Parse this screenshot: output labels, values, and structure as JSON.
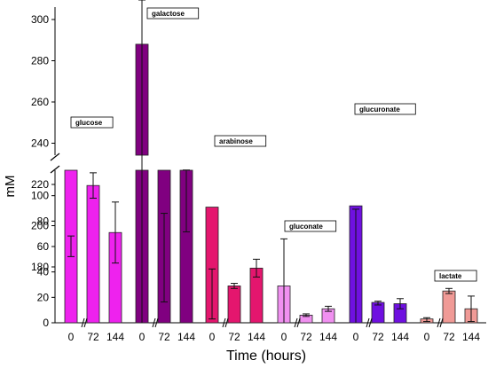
{
  "chart_data": {
    "type": "bar",
    "title": "",
    "xlabel": "Time (hours)",
    "ylabel": "mM",
    "y_axis_break": {
      "lower": [
        0,
        120
      ],
      "upper": [
        170,
        310
      ]
    },
    "yticks_lower": [
      0,
      20,
      40,
      60,
      80,
      100
    ],
    "yticks_upper": [
      180,
      200,
      220,
      240,
      260,
      280,
      300
    ],
    "series": [
      {
        "name": "glucose",
        "color": "#ee22ee",
        "x": [
          "0",
          "72",
          "144"
        ],
        "values": [
          190,
          108,
          71
        ],
        "err_hi": [
          195,
          118,
          95
        ],
        "err_lo": [
          185,
          98,
          47
        ]
      },
      {
        "name": "galactose",
        "color": "#800080",
        "x": [
          "0",
          "72",
          "144"
        ],
        "values": [
          288,
          184,
          212
        ],
        "err_hi": [
          311,
          206,
          227
        ],
        "err_lo": [
          0,
          163,
          197
        ]
      },
      {
        "name": "arabinose",
        "color": "#e4166e",
        "x": [
          "0",
          "72",
          "144"
        ],
        "values": [
          91,
          29,
          43
        ],
        "err_hi": [
          179,
          31,
          50
        ],
        "err_lo": [
          3,
          27,
          36
        ]
      },
      {
        "name": "gluconate",
        "color": "#f090f0",
        "x": [
          "0",
          "72",
          "144"
        ],
        "values": [
          29,
          6,
          11
        ],
        "err_hi": [
          66,
          7,
          13
        ],
        "err_lo": [
          0,
          5,
          9
        ]
      },
      {
        "name": "glucuronate",
        "color": "#6f10e0",
        "x": [
          "0",
          "72",
          "144"
        ],
        "values": [
          92,
          16,
          15
        ],
        "err_hi": [
          208,
          17,
          19
        ],
        "err_lo": [
          0,
          14,
          11
        ]
      },
      {
        "name": "lactate",
        "color": "#f09a96",
        "x": [
          "0",
          "72",
          "144"
        ],
        "values": [
          3,
          25,
          11
        ],
        "err_hi": [
          4,
          27,
          21
        ],
        "err_lo": [
          1,
          23,
          1
        ]
      }
    ],
    "annotations": [
      "glucose",
      "galactose",
      "arabinose",
      "gluconate",
      "glucuronate",
      "lactate"
    ]
  }
}
